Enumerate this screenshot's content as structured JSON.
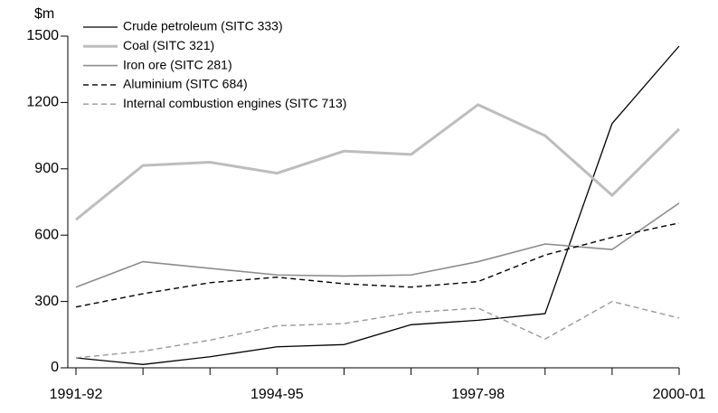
{
  "chart_data": {
    "type": "line",
    "y_label": "$m",
    "categories": [
      "1991-92",
      null,
      null,
      "1994-95",
      null,
      null,
      "1997-98",
      null,
      null,
      "2000-01"
    ],
    "ylim": [
      0,
      1500
    ],
    "yticks": [
      0,
      300,
      600,
      900,
      1200,
      1500
    ],
    "legend": "top-left",
    "series": [
      {
        "name": "Crude petroleum (SITC 333)",
        "color": "#000000",
        "width": 1.3,
        "dash": "none",
        "values": [
          45,
          15,
          50,
          95,
          105,
          195,
          215,
          245,
          1105,
          1455
        ]
      },
      {
        "name": "Coal (SITC  321)",
        "color": "#bdbdbd",
        "width": 3,
        "dash": "none",
        "values": [
          670,
          915,
          930,
          880,
          980,
          965,
          1190,
          1050,
          780,
          1080
        ]
      },
      {
        "name": "Iron ore (SITC 281)",
        "color": "#8c8c8c",
        "width": 1.6,
        "dash": "none",
        "values": [
          365,
          480,
          450,
          420,
          415,
          420,
          480,
          560,
          535,
          745
        ]
      },
      {
        "name": "Aluminium (SITC 684)",
        "color": "#000000",
        "width": 1.4,
        "dash": "6 4",
        "values": [
          275,
          335,
          385,
          410,
          380,
          365,
          390,
          510,
          590,
          655
        ]
      },
      {
        "name": "Internal combustion engines (SITC 713)",
        "color": "#999999",
        "width": 1.4,
        "dash": "6 4",
        "values": [
          45,
          75,
          125,
          190,
          200,
          250,
          270,
          130,
          300,
          225
        ]
      }
    ]
  }
}
